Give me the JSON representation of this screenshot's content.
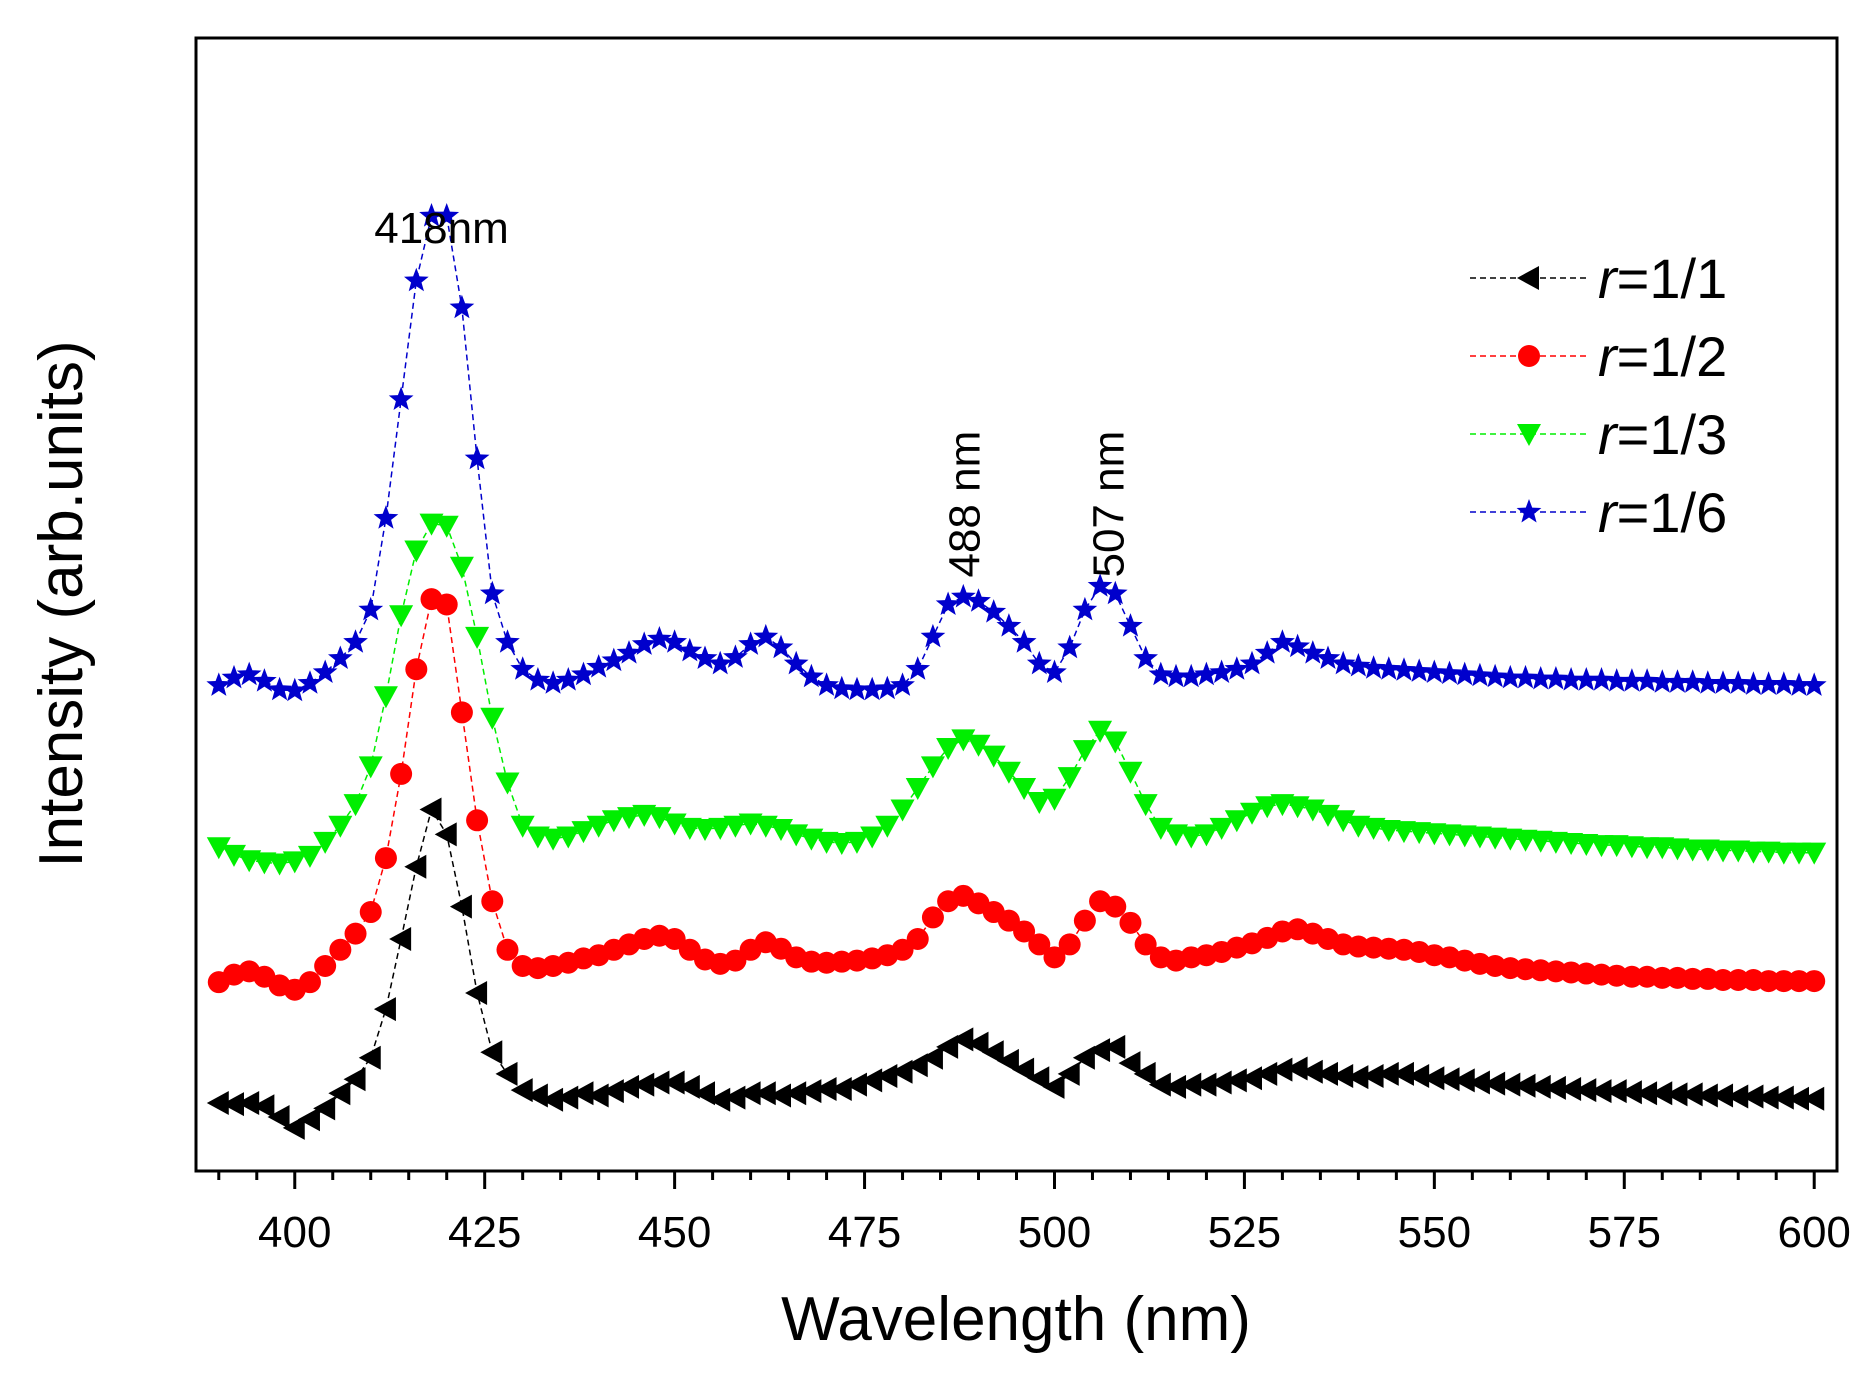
{
  "chart_data": {
    "type": "line",
    "xlabel": "Wavelength (nm)",
    "ylabel": "Intensity (arb.units)",
    "xlim": [
      387,
      603
    ],
    "ylim": [
      0,
      1.05
    ],
    "xticks": [
      400,
      425,
      450,
      475,
      500,
      525,
      550,
      575,
      600
    ],
    "xtick_labels": [
      "400",
      "425",
      "450",
      "475",
      "500",
      "525",
      "550",
      "575",
      "600"
    ],
    "yticks_shown": false,
    "grid": false,
    "legend_position": "top-right",
    "annotations": [
      {
        "text": "418nm",
        "x": 418,
        "y": 0.86,
        "rotation": 0
      },
      {
        "text": "488 nm",
        "x": 488,
        "y": 0.55,
        "rotation": -90
      },
      {
        "text": "507 nm",
        "x": 507,
        "y": 0.55,
        "rotation": -90
      }
    ],
    "series": [
      {
        "name": "=1/1",
        "italic_prefix": "r",
        "color": "#000000",
        "marker": "triangle-left",
        "x": [
          390,
          392,
          394,
          396,
          398,
          400,
          402,
          404,
          406,
          408,
          410,
          412,
          414,
          416,
          418,
          420,
          422,
          424,
          426,
          428,
          430,
          432,
          434,
          436,
          438,
          440,
          442,
          444,
          446,
          448,
          450,
          452,
          454,
          456,
          458,
          460,
          462,
          464,
          466,
          468,
          470,
          472,
          474,
          476,
          478,
          480,
          482,
          484,
          486,
          488,
          490,
          492,
          494,
          496,
          498,
          500,
          502,
          504,
          506,
          508,
          510,
          512,
          514,
          516,
          518,
          520,
          522,
          524,
          526,
          528,
          530,
          532,
          534,
          536,
          538,
          540,
          542,
          544,
          546,
          548,
          550,
          552,
          554,
          556,
          558,
          560,
          562,
          564,
          566,
          568,
          570,
          572,
          574,
          576,
          578,
          580,
          582,
          584,
          586,
          588,
          590,
          592,
          594,
          596,
          598,
          600
        ],
        "values": [
          0.063,
          0.062,
          0.063,
          0.06,
          0.05,
          0.04,
          0.048,
          0.058,
          0.072,
          0.085,
          0.105,
          0.15,
          0.215,
          0.282,
          0.335,
          0.312,
          0.245,
          0.165,
          0.11,
          0.09,
          0.075,
          0.07,
          0.066,
          0.068,
          0.072,
          0.07,
          0.074,
          0.078,
          0.08,
          0.082,
          0.082,
          0.078,
          0.072,
          0.066,
          0.068,
          0.072,
          0.072,
          0.07,
          0.072,
          0.074,
          0.076,
          0.076,
          0.08,
          0.084,
          0.088,
          0.092,
          0.098,
          0.105,
          0.115,
          0.122,
          0.118,
          0.11,
          0.102,
          0.094,
          0.086,
          0.078,
          0.09,
          0.105,
          0.112,
          0.115,
          0.1,
          0.09,
          0.08,
          0.078,
          0.08,
          0.08,
          0.082,
          0.084,
          0.086,
          0.09,
          0.094,
          0.095,
          0.092,
          0.09,
          0.088,
          0.087,
          0.088,
          0.09,
          0.09,
          0.088,
          0.086,
          0.085,
          0.084,
          0.082,
          0.081,
          0.08,
          0.079,
          0.078,
          0.077,
          0.076,
          0.075,
          0.074,
          0.074,
          0.073,
          0.072,
          0.072,
          0.071,
          0.071,
          0.07,
          0.07,
          0.069,
          0.069,
          0.068,
          0.068,
          0.067,
          0.067
        ]
      },
      {
        "name": "=1/2",
        "italic_prefix": "r",
        "color": "#ff0000",
        "marker": "circle",
        "x": [
          390,
          392,
          394,
          396,
          398,
          400,
          402,
          404,
          406,
          408,
          410,
          412,
          414,
          416,
          418,
          420,
          422,
          424,
          426,
          428,
          430,
          432,
          434,
          436,
          438,
          440,
          442,
          444,
          446,
          448,
          450,
          452,
          454,
          456,
          458,
          460,
          462,
          464,
          466,
          468,
          470,
          472,
          474,
          476,
          478,
          480,
          482,
          484,
          486,
          488,
          490,
          492,
          494,
          496,
          498,
          500,
          502,
          504,
          506,
          508,
          510,
          512,
          514,
          516,
          518,
          520,
          522,
          524,
          526,
          528,
          530,
          532,
          534,
          536,
          538,
          540,
          542,
          544,
          546,
          548,
          550,
          552,
          554,
          556,
          558,
          560,
          562,
          564,
          566,
          568,
          570,
          572,
          574,
          576,
          578,
          580,
          582,
          584,
          586,
          588,
          590,
          592,
          594,
          596,
          598,
          600
        ],
        "values": [
          0.175,
          0.182,
          0.185,
          0.18,
          0.172,
          0.168,
          0.175,
          0.19,
          0.205,
          0.22,
          0.24,
          0.29,
          0.368,
          0.465,
          0.53,
          0.525,
          0.425,
          0.325,
          0.25,
          0.205,
          0.19,
          0.188,
          0.19,
          0.193,
          0.197,
          0.2,
          0.205,
          0.21,
          0.215,
          0.218,
          0.215,
          0.205,
          0.196,
          0.192,
          0.195,
          0.205,
          0.212,
          0.206,
          0.198,
          0.194,
          0.193,
          0.194,
          0.195,
          0.197,
          0.2,
          0.205,
          0.215,
          0.235,
          0.25,
          0.255,
          0.248,
          0.24,
          0.232,
          0.222,
          0.21,
          0.198,
          0.21,
          0.232,
          0.25,
          0.245,
          0.23,
          0.21,
          0.198,
          0.195,
          0.198,
          0.2,
          0.203,
          0.207,
          0.211,
          0.216,
          0.222,
          0.224,
          0.22,
          0.215,
          0.21,
          0.208,
          0.207,
          0.206,
          0.205,
          0.203,
          0.2,
          0.198,
          0.195,
          0.192,
          0.19,
          0.188,
          0.187,
          0.186,
          0.185,
          0.184,
          0.183,
          0.182,
          0.181,
          0.18,
          0.18,
          0.179,
          0.179,
          0.178,
          0.178,
          0.177,
          0.177,
          0.177,
          0.176,
          0.176,
          0.176,
          0.176
        ]
      },
      {
        "name": "=1/3",
        "italic_prefix": "r",
        "color": "#00ee00",
        "marker": "triangle-down",
        "x": [
          390,
          392,
          394,
          396,
          398,
          400,
          402,
          404,
          406,
          408,
          410,
          412,
          414,
          416,
          418,
          420,
          422,
          424,
          426,
          428,
          430,
          432,
          434,
          436,
          438,
          440,
          442,
          444,
          446,
          448,
          450,
          452,
          454,
          456,
          458,
          460,
          462,
          464,
          466,
          468,
          470,
          472,
          474,
          476,
          478,
          480,
          482,
          484,
          486,
          488,
          490,
          492,
          494,
          496,
          498,
          500,
          502,
          504,
          506,
          508,
          510,
          512,
          514,
          516,
          518,
          520,
          522,
          524,
          526,
          528,
          530,
          532,
          534,
          536,
          538,
          540,
          542,
          544,
          546,
          548,
          550,
          552,
          554,
          556,
          558,
          560,
          562,
          564,
          566,
          568,
          570,
          572,
          574,
          576,
          578,
          580,
          582,
          584,
          586,
          588,
          590,
          592,
          594,
          596,
          598,
          600
        ],
        "values": [
          0.3,
          0.293,
          0.288,
          0.286,
          0.285,
          0.287,
          0.292,
          0.305,
          0.32,
          0.34,
          0.375,
          0.44,
          0.515,
          0.575,
          0.6,
          0.598,
          0.56,
          0.495,
          0.42,
          0.36,
          0.32,
          0.31,
          0.308,
          0.31,
          0.315,
          0.32,
          0.325,
          0.328,
          0.33,
          0.328,
          0.322,
          0.318,
          0.317,
          0.318,
          0.32,
          0.322,
          0.32,
          0.317,
          0.312,
          0.308,
          0.305,
          0.304,
          0.305,
          0.31,
          0.32,
          0.335,
          0.355,
          0.375,
          0.392,
          0.4,
          0.395,
          0.385,
          0.37,
          0.355,
          0.342,
          0.345,
          0.365,
          0.39,
          0.408,
          0.398,
          0.37,
          0.34,
          0.318,
          0.312,
          0.31,
          0.312,
          0.318,
          0.325,
          0.332,
          0.338,
          0.34,
          0.338,
          0.335,
          0.33,
          0.325,
          0.32,
          0.318,
          0.316,
          0.315,
          0.314,
          0.313,
          0.312,
          0.311,
          0.31,
          0.309,
          0.308,
          0.307,
          0.306,
          0.305,
          0.304,
          0.303,
          0.302,
          0.302,
          0.301,
          0.3,
          0.3,
          0.299,
          0.298,
          0.298,
          0.297,
          0.297,
          0.296,
          0.296,
          0.295,
          0.295,
          0.295
        ]
      },
      {
        "name": "=1/6",
        "italic_prefix": "r",
        "color": "#0000cc",
        "marker": "star",
        "x": [
          390,
          392,
          394,
          396,
          398,
          400,
          402,
          404,
          406,
          408,
          410,
          412,
          414,
          416,
          418,
          420,
          422,
          424,
          426,
          428,
          430,
          432,
          434,
          436,
          438,
          440,
          442,
          444,
          446,
          448,
          450,
          452,
          454,
          456,
          458,
          460,
          462,
          464,
          466,
          468,
          470,
          472,
          474,
          476,
          478,
          480,
          482,
          484,
          486,
          488,
          490,
          492,
          494,
          496,
          498,
          500,
          502,
          504,
          506,
          508,
          510,
          512,
          514,
          516,
          518,
          520,
          522,
          524,
          526,
          528,
          530,
          532,
          534,
          536,
          538,
          540,
          542,
          544,
          546,
          548,
          550,
          552,
          554,
          556,
          558,
          560,
          562,
          564,
          566,
          568,
          570,
          572,
          574,
          576,
          578,
          580,
          582,
          584,
          586,
          588,
          590,
          592,
          594,
          596,
          598,
          600
        ],
        "values": [
          0.45,
          0.457,
          0.46,
          0.454,
          0.446,
          0.445,
          0.452,
          0.462,
          0.475,
          0.49,
          0.52,
          0.605,
          0.715,
          0.825,
          0.885,
          0.885,
          0.8,
          0.66,
          0.535,
          0.49,
          0.465,
          0.455,
          0.452,
          0.455,
          0.46,
          0.467,
          0.473,
          0.48,
          0.488,
          0.493,
          0.49,
          0.482,
          0.475,
          0.47,
          0.476,
          0.488,
          0.495,
          0.485,
          0.47,
          0.458,
          0.45,
          0.447,
          0.446,
          0.446,
          0.447,
          0.45,
          0.465,
          0.495,
          0.525,
          0.532,
          0.528,
          0.518,
          0.505,
          0.49,
          0.47,
          0.462,
          0.485,
          0.52,
          0.542,
          0.535,
          0.505,
          0.475,
          0.46,
          0.458,
          0.458,
          0.46,
          0.462,
          0.465,
          0.47,
          0.48,
          0.49,
          0.486,
          0.48,
          0.475,
          0.47,
          0.468,
          0.466,
          0.465,
          0.464,
          0.463,
          0.462,
          0.461,
          0.46,
          0.459,
          0.458,
          0.457,
          0.457,
          0.456,
          0.456,
          0.455,
          0.455,
          0.455,
          0.454,
          0.454,
          0.454,
          0.453,
          0.453,
          0.453,
          0.452,
          0.452,
          0.452,
          0.451,
          0.451,
          0.451,
          0.45,
          0.45
        ]
      }
    ]
  }
}
